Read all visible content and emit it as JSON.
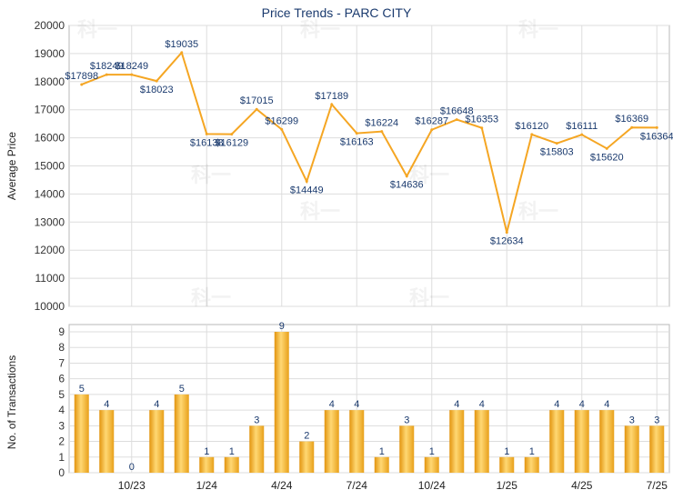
{
  "chart_data": [
    {
      "type": "line",
      "title": "Price Trends - PARC CITY",
      "xlabel": "",
      "ylabel": "Average Price",
      "ylim": [
        10000,
        20000
      ],
      "yticks": [
        10000,
        11000,
        12000,
        13000,
        14000,
        15000,
        16000,
        17000,
        18000,
        19000,
        20000
      ],
      "xtick_labels": [
        "10/23",
        "1/24",
        "4/24",
        "7/24",
        "10/24",
        "1/25",
        "4/25",
        "7/25"
      ],
      "grid": true,
      "series": [
        {
          "values": [
            17898,
            18249,
            18249,
            18023,
            19035,
            16138,
            16129,
            17015,
            16299,
            14449,
            17189,
            16163,
            16224,
            14636,
            16287,
            16648,
            16353,
            12634,
            16120,
            15803,
            16111,
            15620,
            16369,
            16364
          ]
        }
      ],
      "line_color": "#f5a623"
    },
    {
      "type": "bar",
      "ylabel": "No. of Transactions",
      "xlabel": "",
      "ylim": [
        0,
        9
      ],
      "yticks": [
        0,
        1,
        2,
        3,
        4,
        5,
        6,
        7,
        8,
        9
      ],
      "xtick_labels": [
        "10/23",
        "1/24",
        "4/24",
        "7/24",
        "10/24",
        "1/25",
        "4/25",
        "7/25"
      ],
      "grid": true,
      "series": [
        {
          "values": [
            5,
            4,
            0,
            4,
            5,
            1,
            1,
            3,
            9,
            2,
            4,
            4,
            1,
            3,
            1,
            4,
            4,
            1,
            1,
            4,
            4,
            4,
            3,
            3
          ]
        }
      ],
      "bar_color": "#f5a623"
    }
  ],
  "watermark": "科一"
}
